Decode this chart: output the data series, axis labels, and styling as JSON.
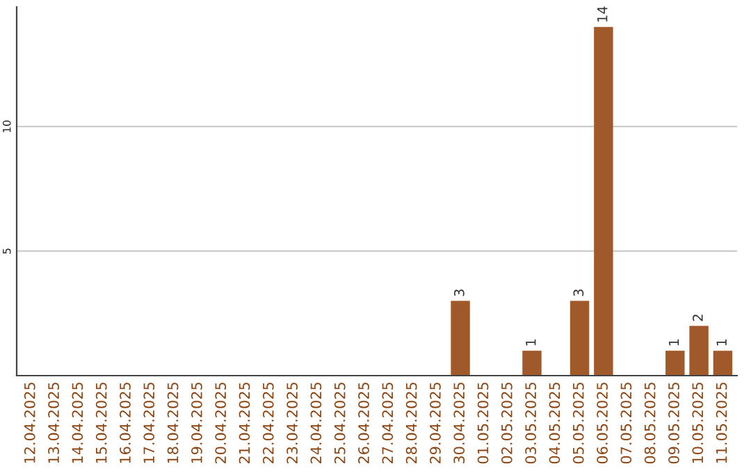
{
  "chart_data": {
    "type": "bar",
    "categories": [
      "12.04.2025",
      "13.04.2025",
      "14.04.2025",
      "15.04.2025",
      "16.04.2025",
      "17.04.2025",
      "18.04.2025",
      "19.04.2025",
      "20.04.2025",
      "21.04.2025",
      "22.04.2025",
      "23.04.2025",
      "24.04.2025",
      "25.04.2025",
      "26.04.2025",
      "27.04.2025",
      "28.04.2025",
      "29.04.2025",
      "30.04.2025",
      "01.05.2025",
      "02.05.2025",
      "03.05.2025",
      "04.05.2025",
      "05.05.2025",
      "06.05.2025",
      "07.05.2025",
      "08.05.2025",
      "09.05.2025",
      "10.05.2025",
      "11.05.2025"
    ],
    "values": [
      0,
      0,
      0,
      0,
      0,
      0,
      0,
      0,
      0,
      0,
      0,
      0,
      0,
      0,
      0,
      0,
      0,
      0,
      3,
      0,
      0,
      1,
      0,
      3,
      14,
      0,
      0,
      1,
      2,
      1
    ],
    "value_labels": [
      null,
      null,
      null,
      null,
      null,
      null,
      null,
      null,
      null,
      null,
      null,
      null,
      null,
      null,
      null,
      null,
      null,
      null,
      "3",
      null,
      null,
      "1",
      null,
      "3",
      "14",
      null,
      null,
      "1",
      "2",
      "1"
    ],
    "color": "#a0592a",
    "ylim": [
      0,
      14.8
    ],
    "yticks": [
      5,
      10
    ],
    "grid": "y"
  }
}
